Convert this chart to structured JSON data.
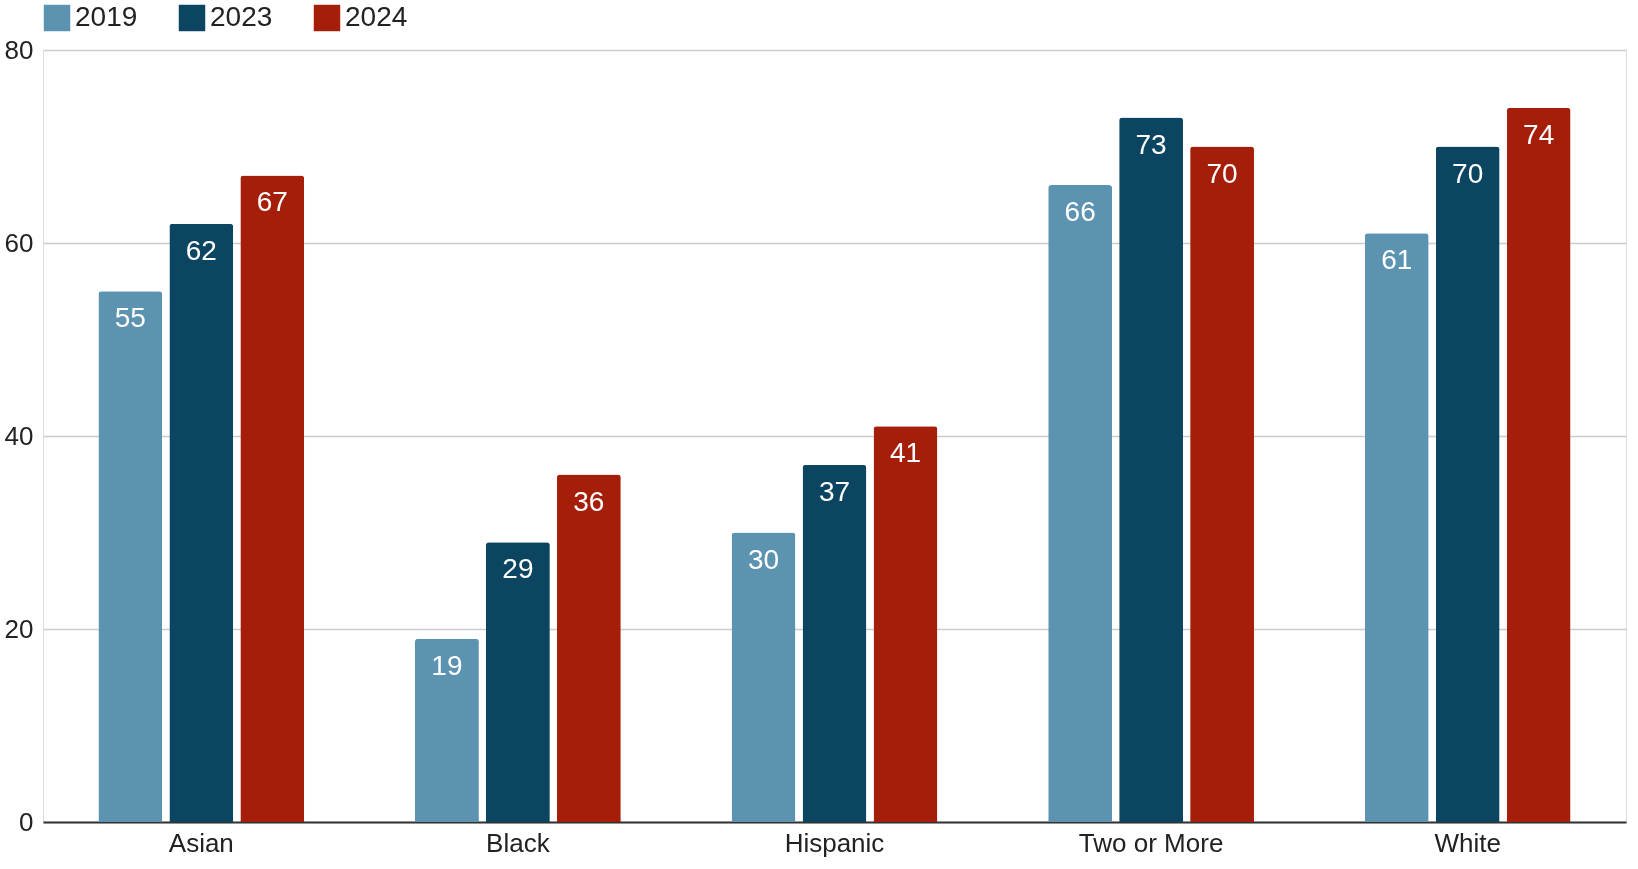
{
  "chart_data": {
    "type": "bar",
    "categories": [
      "Asian",
      "Black",
      "Hispanic",
      "Two or More",
      "White"
    ],
    "series": [
      {
        "name": "2019",
        "color": "#5b93b0",
        "values": [
          55,
          19,
          30,
          66,
          61
        ]
      },
      {
        "name": "2023",
        "color": "#0b4562",
        "values": [
          62,
          29,
          37,
          73,
          70
        ]
      },
      {
        "name": "2024",
        "color": "#a51e0a",
        "values": [
          67,
          36,
          41,
          70,
          74
        ]
      }
    ],
    "ylim": [
      0,
      80
    ],
    "yticks": [
      0,
      20,
      40,
      60,
      80
    ],
    "grid": "y",
    "legend": "top",
    "data_labels": true
  }
}
